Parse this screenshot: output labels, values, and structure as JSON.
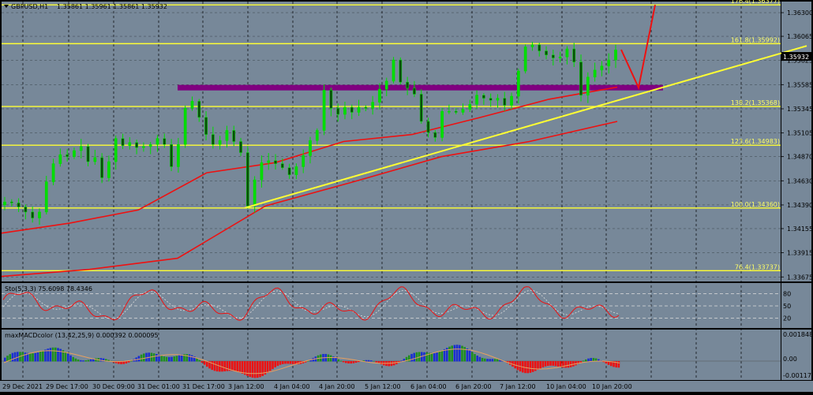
{
  "header": {
    "menu_icon": "triangle-down-icon",
    "symbol": "GBPUSD,H1",
    "ohlc": "1.35861 1.35961 1.35861 1.35932"
  },
  "colors": {
    "background": "#778899",
    "grid": "#000000",
    "candle_up": "#00dd00",
    "candle_down": "#00dd00",
    "fib_line": "#ffff33",
    "trendline": "#ffff33",
    "ma": "#ee1111",
    "resistance_zone": "#800080",
    "arrow": "#ee1111",
    "macd_up": "#1f8f1f",
    "macd_up2": "#1a2fd0",
    "macd_down": "#ee1111"
  },
  "price_axis": {
    "ticks": [
      "1.36300",
      "1.36065",
      "1.35825",
      "1.35585",
      "1.35345",
      "1.35105",
      "1.34870",
      "1.34630",
      "1.34390",
      "1.34155",
      "1.33915",
      "1.33675"
    ],
    "current_price": "1.35932"
  },
  "fib_levels": [
    {
      "label": "176.4(1.36377)",
      "price": 1.36377
    },
    {
      "label": "161.8(1.35992)",
      "price": 1.35992
    },
    {
      "label": "138.2(1.35368)",
      "price": 1.35368
    },
    {
      "label": "123.6(1.34983)",
      "price": 1.34983
    },
    {
      "label": "100.0(1.34360)",
      "price": 1.3436
    },
    {
      "label": "76.4(1.33737)",
      "price": 1.33737
    }
  ],
  "time_axis": {
    "labels": [
      "29 Dec 2021",
      "29 Dec 17:00",
      "30 Dec 09:00",
      "31 Dec 01:00",
      "31 Dec 17:00",
      "3 Jan 12:00",
      "4 Jan 04:00",
      "4 Jan 20:00",
      "5 Jan 12:00",
      "6 Jan 04:00",
      "6 Jan 20:00",
      "7 Jan 12:00",
      "10 Jan 04:00",
      "10 Jan 20:00"
    ]
  },
  "stochastic": {
    "title": "Sto(5,3,3) 75.6098 78.4346",
    "levels": [
      "80",
      "50",
      "20"
    ]
  },
  "macd": {
    "title": "maxMACDcolor (13,42,25,9) 0.000392 0.000095",
    "ticks": [
      "0.001848",
      "0.00",
      "-0.001178"
    ]
  },
  "chart_data": {
    "type": "candlestick",
    "symbol": "GBPUSD",
    "timeframe": "H1",
    "close_path": [
      1.3442,
      1.3441,
      1.3437,
      1.3432,
      1.3426,
      1.3432,
      1.3462,
      1.348,
      1.3489,
      1.3487,
      1.3493,
      1.3497,
      1.3482,
      1.3486,
      1.3466,
      1.3482,
      1.3505,
      1.3498,
      1.3501,
      1.3496,
      1.3497,
      1.3499,
      1.3505,
      1.3499,
      1.3477,
      1.3499,
      1.3535,
      1.3542,
      1.3526,
      1.3509,
      1.3499,
      1.3503,
      1.3513,
      1.3502,
      1.3491,
      1.3438,
      1.3464,
      1.3481,
      1.3483,
      1.348,
      1.3476,
      1.3469,
      1.3477,
      1.3488,
      1.3503,
      1.3513,
      1.3553,
      1.3535,
      1.3529,
      1.3536,
      1.3531,
      1.3536,
      1.3535,
      1.3541,
      1.3554,
      1.3562,
      1.3583,
      1.3561,
      1.3555,
      1.3549,
      1.3522,
      1.3511,
      1.3506,
      1.3532,
      1.3532,
      1.3531,
      1.3534,
      1.3539,
      1.3548,
      1.3545,
      1.3543,
      1.3545,
      1.3538,
      1.3547,
      1.3572,
      1.3596,
      1.3598,
      1.3592,
      1.3588,
      1.3585,
      1.3586,
      1.3594,
      1.3581,
      1.3548,
      1.3566,
      1.3573,
      1.3577,
      1.3583,
      1.3593
    ],
    "ma_fast_anchors": [
      [
        1.3411,
        1.3421
      ],
      [
        1.3434,
        1.3471
      ],
      [
        1.3481,
        1.3502
      ],
      [
        1.3509,
        1.3526
      ],
      [
        1.3544,
        1.3556
      ]
    ],
    "ma_slow_anchors": [
      [
        1.3368,
        1.3375
      ],
      [
        1.3386,
        1.3438
      ],
      [
        1.3462,
        1.3487
      ],
      [
        1.3502,
        1.3522
      ]
    ],
    "trendline": {
      "from": 1.3436,
      "to": 1.3597
    },
    "resistance_zone": 1.35555,
    "projection": [
      1.35932,
      1.35555,
      1.36377
    ],
    "ylim": [
      1.3363,
      1.3641
    ]
  }
}
